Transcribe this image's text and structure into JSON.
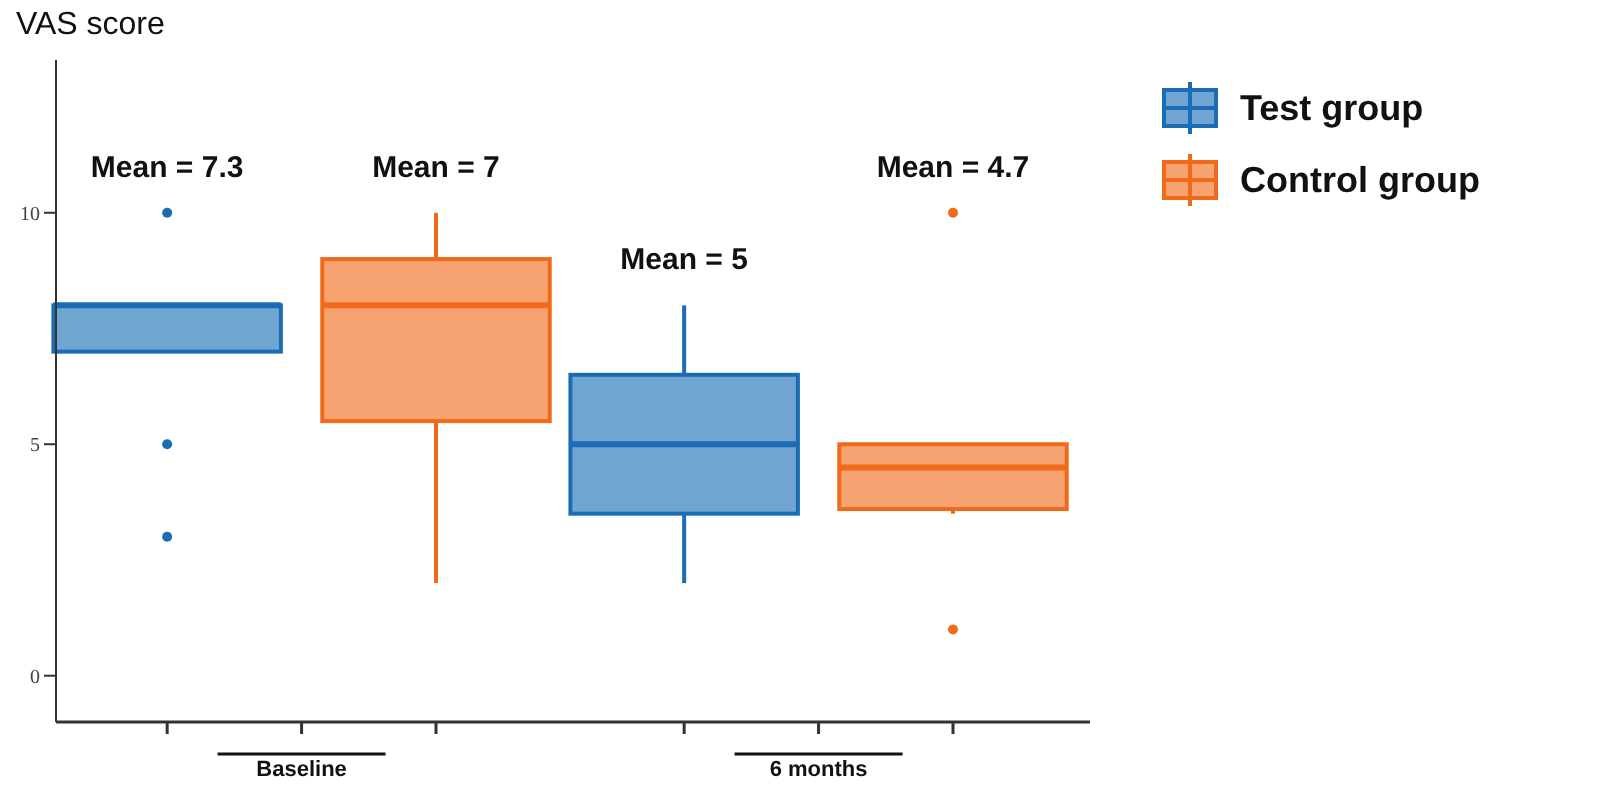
{
  "chart_data": {
    "type": "box",
    "ylabel": "VAS score",
    "categories": [
      "Baseline",
      "6 months"
    ],
    "series": [
      {
        "name": "Test group",
        "color": "#1a6db5",
        "boxes": [
          {
            "low": 7,
            "q1": 7,
            "median": 8,
            "q3": 8,
            "high": 8,
            "outliers": [
              10,
              5,
              3
            ]
          },
          {
            "low": 2,
            "q1": 3.5,
            "median": 5,
            "q3": 6.5,
            "high": 8
          }
        ]
      },
      {
        "name": "Control group",
        "color": "#f06a1a",
        "boxes": [
          {
            "low": 2,
            "q1": 5.5,
            "median": 8,
            "q3": 9,
            "high": 10
          },
          {
            "low": 3.5,
            "q1": 3.6,
            "median": 4.5,
            "q3": 5,
            "high": 5,
            "outliers": [
              10,
              1
            ]
          }
        ]
      }
    ],
    "annotations": [
      "Mean = 7.3",
      "Mean = 7",
      "Mean = 5",
      "Mean = 4.7"
    ],
    "ylim": [
      -1,
      13.3
    ],
    "yticks": [
      0,
      5,
      10
    ],
    "grid": false,
    "legend": "top right"
  }
}
